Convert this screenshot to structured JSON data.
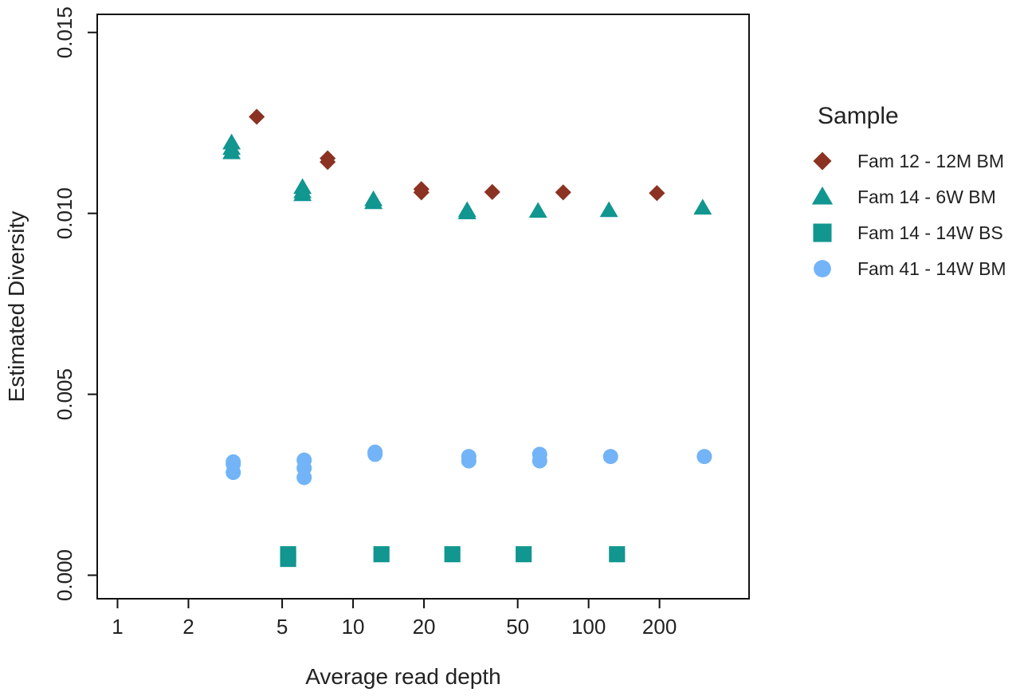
{
  "chart_data": {
    "type": "scatter",
    "xlabel": "Average read depth",
    "ylabel": "Estimated Diversity",
    "x_scale": "log",
    "xlim": [
      0.82,
      480
    ],
    "ylim": [
      -0.00065,
      0.0155
    ],
    "x_ticks": [
      1,
      2,
      5,
      10,
      20,
      50,
      100,
      200
    ],
    "x_tick_labels": [
      "1",
      "2",
      "5",
      "10",
      "20",
      "50",
      "100",
      "200"
    ],
    "y_ticks": [
      0,
      0.005,
      0.01,
      0.015
    ],
    "y_tick_labels": [
      "0.000",
      "0.005",
      "0.010",
      "0.015"
    ],
    "grid": false,
    "legend": {
      "title": "Sample",
      "placement": "right"
    },
    "series": [
      {
        "name": "Fam 12 - 12M BM",
        "marker": "diamond",
        "color": "#8B3222",
        "points": [
          [
            3.9,
            0.01267
          ],
          [
            7.8,
            0.01152
          ],
          [
            7.8,
            0.01142
          ],
          [
            19.5,
            0.01067
          ],
          [
            19.5,
            0.01058
          ],
          [
            39,
            0.01059
          ],
          [
            78,
            0.01058
          ],
          [
            195,
            0.01056
          ]
        ]
      },
      {
        "name": "Fam 14 - 6W BM",
        "marker": "triangle",
        "color": "#119690",
        "points": [
          [
            3.05,
            0.01195
          ],
          [
            3.05,
            0.0118
          ],
          [
            3.05,
            0.01168
          ],
          [
            6.1,
            0.01072
          ],
          [
            6.1,
            0.0106
          ],
          [
            6.1,
            0.01052
          ],
          [
            12.2,
            0.01038
          ],
          [
            12.2,
            0.0103
          ],
          [
            30.5,
            0.01008
          ],
          [
            30.5,
            0.01002
          ],
          [
            61,
            0.01006
          ],
          [
            122,
            0.01008
          ],
          [
            305,
            0.01015
          ]
        ]
      },
      {
        "name": "Fam 14 - 14W BS",
        "marker": "square",
        "color": "#119690",
        "points": [
          [
            5.3,
            0.00058
          ],
          [
            5.3,
            0.00045
          ],
          [
            13.2,
            0.00058
          ],
          [
            26.4,
            0.00058
          ],
          [
            53,
            0.00058
          ],
          [
            132,
            0.00058
          ]
        ]
      },
      {
        "name": "Fam 41 - 14W BM",
        "marker": "circle",
        "color": "#72B4F7",
        "points": [
          [
            3.1,
            0.00313
          ],
          [
            3.1,
            0.00307
          ],
          [
            3.1,
            0.00284
          ],
          [
            6.2,
            0.00318
          ],
          [
            6.2,
            0.00296
          ],
          [
            6.2,
            0.0027
          ],
          [
            12.4,
            0.0034
          ],
          [
            12.4,
            0.00334
          ],
          [
            31,
            0.00328
          ],
          [
            31,
            0.00316
          ],
          [
            62,
            0.00334
          ],
          [
            62,
            0.00316
          ],
          [
            124,
            0.00328
          ],
          [
            310,
            0.00328
          ]
        ]
      }
    ]
  }
}
